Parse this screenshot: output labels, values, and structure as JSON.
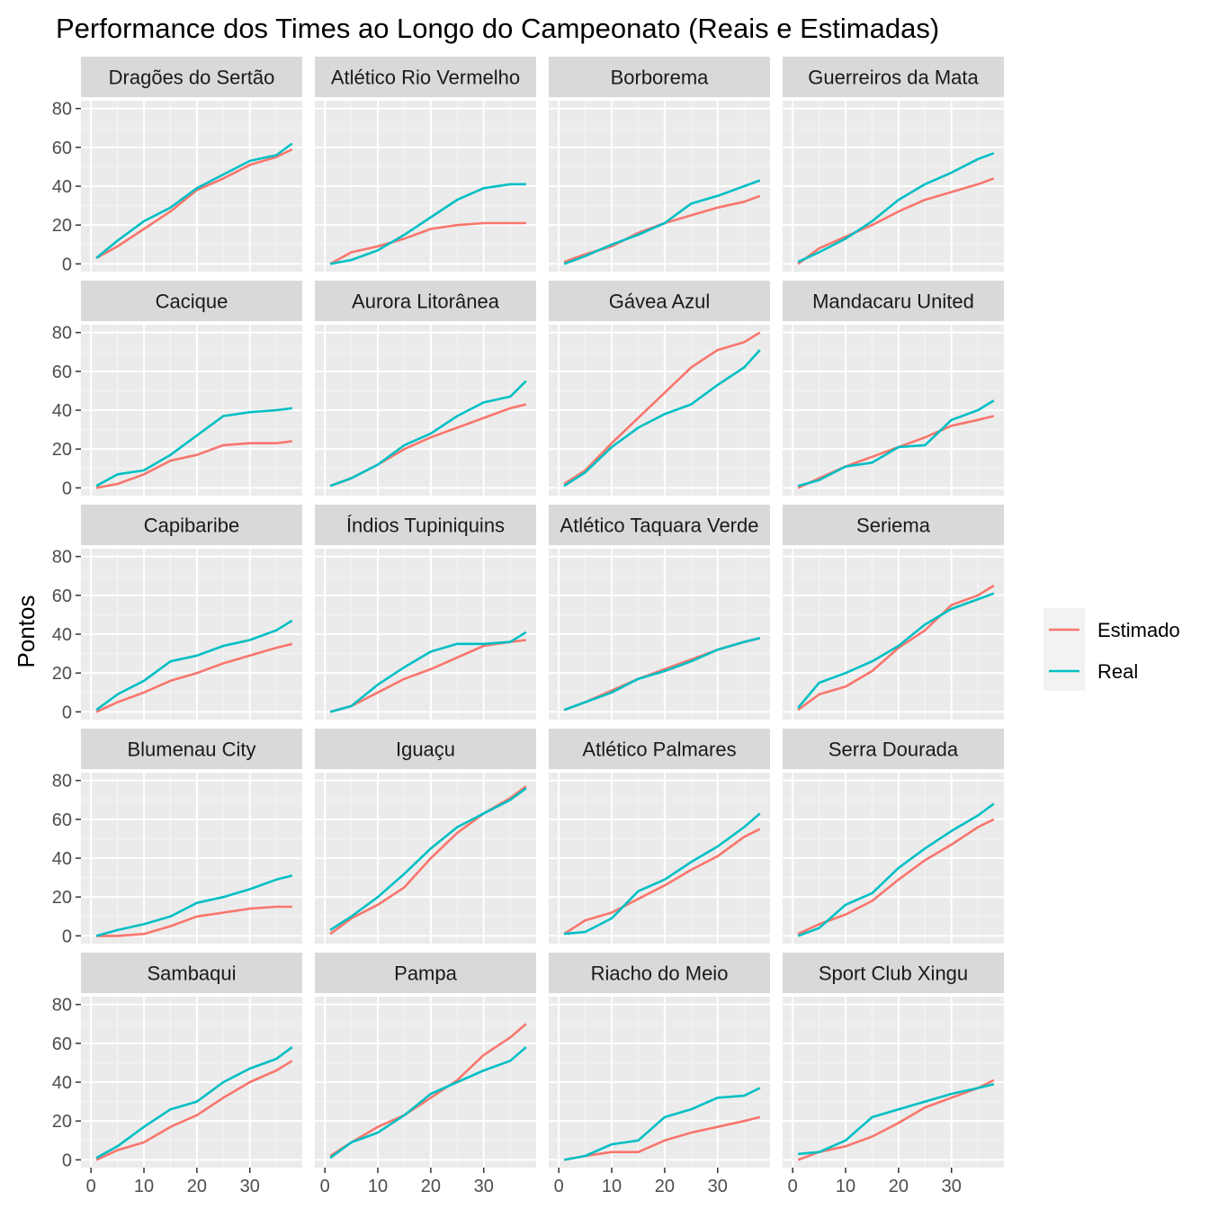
{
  "chart_data": {
    "type": "line",
    "title": "Performance dos Times ao Longo do Campeonato (Reais e Estimadas)",
    "xlabel": "",
    "ylabel": "Pontos",
    "xlim": [
      0,
      38
    ],
    "ylim": [
      0,
      80
    ],
    "xticks": [
      0,
      10,
      20,
      30
    ],
    "yticks": [
      0,
      20,
      40,
      60,
      80
    ],
    "grid": true,
    "layout": {
      "rows": 5,
      "cols": 4
    },
    "legend": {
      "position": "right",
      "entries": [
        {
          "name": "Estimado",
          "color": "#F8766D"
        },
        {
          "name": "Real",
          "color": "#00BFC4"
        }
      ]
    },
    "x": [
      1,
      5,
      10,
      15,
      20,
      25,
      30,
      35,
      38
    ],
    "panels": [
      {
        "team": "Dragões do Sertão",
        "series": [
          {
            "name": "Estimado",
            "values": [
              3,
              9,
              18,
              27,
              38,
              44,
              51,
              55,
              59
            ]
          },
          {
            "name": "Real",
            "values": [
              3,
              12,
              22,
              29,
              39,
              46,
              53,
              56,
              62
            ]
          }
        ]
      },
      {
        "team": "Atlético Rio Vermelho",
        "series": [
          {
            "name": "Estimado",
            "values": [
              0,
              6,
              9,
              13,
              18,
              20,
              21,
              21,
              21
            ]
          },
          {
            "name": "Real",
            "values": [
              0,
              2,
              7,
              15,
              24,
              33,
              39,
              41,
              41
            ]
          }
        ]
      },
      {
        "team": "Borborema",
        "series": [
          {
            "name": "Estimado",
            "values": [
              1,
              5,
              9,
              16,
              21,
              25,
              29,
              32,
              35
            ]
          },
          {
            "name": "Real",
            "values": [
              0,
              4,
              10,
              15,
              21,
              31,
              35,
              40,
              43
            ]
          }
        ]
      },
      {
        "team": "Guerreiros da Mata",
        "series": [
          {
            "name": "Estimado",
            "values": [
              0,
              8,
              14,
              20,
              27,
              33,
              37,
              41,
              44
            ]
          },
          {
            "name": "Real",
            "values": [
              1,
              6,
              13,
              22,
              33,
              41,
              47,
              54,
              57
            ]
          }
        ]
      },
      {
        "team": "Cacique",
        "series": [
          {
            "name": "Estimado",
            "values": [
              0,
              2,
              7,
              14,
              17,
              22,
              23,
              23,
              24
            ]
          },
          {
            "name": "Real",
            "values": [
              1,
              7,
              9,
              17,
              27,
              37,
              39,
              40,
              41
            ]
          }
        ]
      },
      {
        "team": "Aurora Litorânea",
        "series": [
          {
            "name": "Estimado",
            "values": [
              1,
              5,
              12,
              20,
              26,
              31,
              36,
              41,
              43
            ]
          },
          {
            "name": "Real",
            "values": [
              1,
              5,
              12,
              22,
              28,
              37,
              44,
              47,
              55
            ]
          }
        ]
      },
      {
        "team": "Gávea Azul",
        "series": [
          {
            "name": "Estimado",
            "values": [
              2,
              9,
              23,
              36,
              49,
              62,
              71,
              75,
              80
            ]
          },
          {
            "name": "Real",
            "values": [
              1,
              8,
              21,
              31,
              38,
              43,
              53,
              62,
              71
            ]
          }
        ]
      },
      {
        "team": "Mandacaru United",
        "series": [
          {
            "name": "Estimado",
            "values": [
              0,
              5,
              11,
              16,
              21,
              26,
              32,
              35,
              37
            ]
          },
          {
            "name": "Real",
            "values": [
              1,
              4,
              11,
              13,
              21,
              22,
              35,
              40,
              45
            ]
          }
        ]
      },
      {
        "team": "Capibaribe",
        "series": [
          {
            "name": "Estimado",
            "values": [
              0,
              5,
              10,
              16,
              20,
              25,
              29,
              33,
              35
            ]
          },
          {
            "name": "Real",
            "values": [
              1,
              9,
              16,
              26,
              29,
              34,
              37,
              42,
              47
            ]
          }
        ]
      },
      {
        "team": "Índios Tupiniquins",
        "series": [
          {
            "name": "Estimado",
            "values": [
              0,
              3,
              10,
              17,
              22,
              28,
              34,
              36,
              37
            ]
          },
          {
            "name": "Real",
            "values": [
              0,
              3,
              14,
              23,
              31,
              35,
              35,
              36,
              41
            ]
          }
        ]
      },
      {
        "team": "Atlético Taquara Verde",
        "series": [
          {
            "name": "Estimado",
            "values": [
              1,
              5,
              11,
              17,
              22,
              27,
              32,
              36,
              38
            ]
          },
          {
            "name": "Real",
            "values": [
              1,
              5,
              10,
              17,
              21,
              26,
              32,
              36,
              38
            ]
          }
        ]
      },
      {
        "team": "Seriema",
        "series": [
          {
            "name": "Estimado",
            "values": [
              1,
              9,
              13,
              21,
              33,
              42,
              55,
              60,
              65
            ]
          },
          {
            "name": "Real",
            "values": [
              2,
              15,
              20,
              26,
              34,
              45,
              53,
              58,
              61
            ]
          }
        ]
      },
      {
        "team": "Blumenau City",
        "series": [
          {
            "name": "Estimado",
            "values": [
              0,
              0,
              1,
              5,
              10,
              12,
              14,
              15,
              15
            ]
          },
          {
            "name": "Real",
            "values": [
              0,
              3,
              6,
              10,
              17,
              20,
              24,
              29,
              31
            ]
          }
        ]
      },
      {
        "team": "Iguaçu",
        "series": [
          {
            "name": "Estimado",
            "values": [
              1,
              9,
              16,
              25,
              40,
              53,
              63,
              71,
              77
            ]
          },
          {
            "name": "Real",
            "values": [
              3,
              10,
              20,
              32,
              45,
              56,
              63,
              70,
              76
            ]
          }
        ]
      },
      {
        "team": "Atlético Palmares",
        "series": [
          {
            "name": "Estimado",
            "values": [
              1,
              8,
              12,
              19,
              26,
              34,
              41,
              51,
              55
            ]
          },
          {
            "name": "Real",
            "values": [
              1,
              2,
              9,
              23,
              29,
              38,
              46,
              56,
              63
            ]
          }
        ]
      },
      {
        "team": "Serra Dourada",
        "series": [
          {
            "name": "Estimado",
            "values": [
              1,
              6,
              11,
              18,
              29,
              39,
              47,
              56,
              60
            ]
          },
          {
            "name": "Real",
            "values": [
              0,
              4,
              16,
              22,
              35,
              45,
              54,
              62,
              68
            ]
          }
        ]
      },
      {
        "team": "Sambaqui",
        "series": [
          {
            "name": "Estimado",
            "values": [
              0,
              5,
              9,
              17,
              23,
              32,
              40,
              46,
              51
            ]
          },
          {
            "name": "Real",
            "values": [
              1,
              7,
              17,
              26,
              30,
              40,
              47,
              52,
              58
            ]
          }
        ]
      },
      {
        "team": "Pampa",
        "series": [
          {
            "name": "Estimado",
            "values": [
              2,
              9,
              17,
              23,
              32,
              41,
              54,
              63,
              70
            ]
          },
          {
            "name": "Real",
            "values": [
              1,
              9,
              14,
              23,
              34,
              40,
              46,
              51,
              58
            ]
          }
        ]
      },
      {
        "team": "Riacho do Meio",
        "series": [
          {
            "name": "Estimado",
            "values": [
              0,
              2,
              4,
              4,
              10,
              14,
              17,
              20,
              22
            ]
          },
          {
            "name": "Real",
            "values": [
              0,
              2,
              8,
              10,
              22,
              26,
              32,
              33,
              37
            ]
          }
        ]
      },
      {
        "team": "Sport Club Xingu",
        "series": [
          {
            "name": "Estimado",
            "values": [
              0,
              4,
              7,
              12,
              19,
              27,
              32,
              37,
              41
            ]
          },
          {
            "name": "Real",
            "values": [
              3,
              4,
              10,
              22,
              26,
              30,
              34,
              37,
              39
            ]
          }
        ]
      }
    ]
  }
}
